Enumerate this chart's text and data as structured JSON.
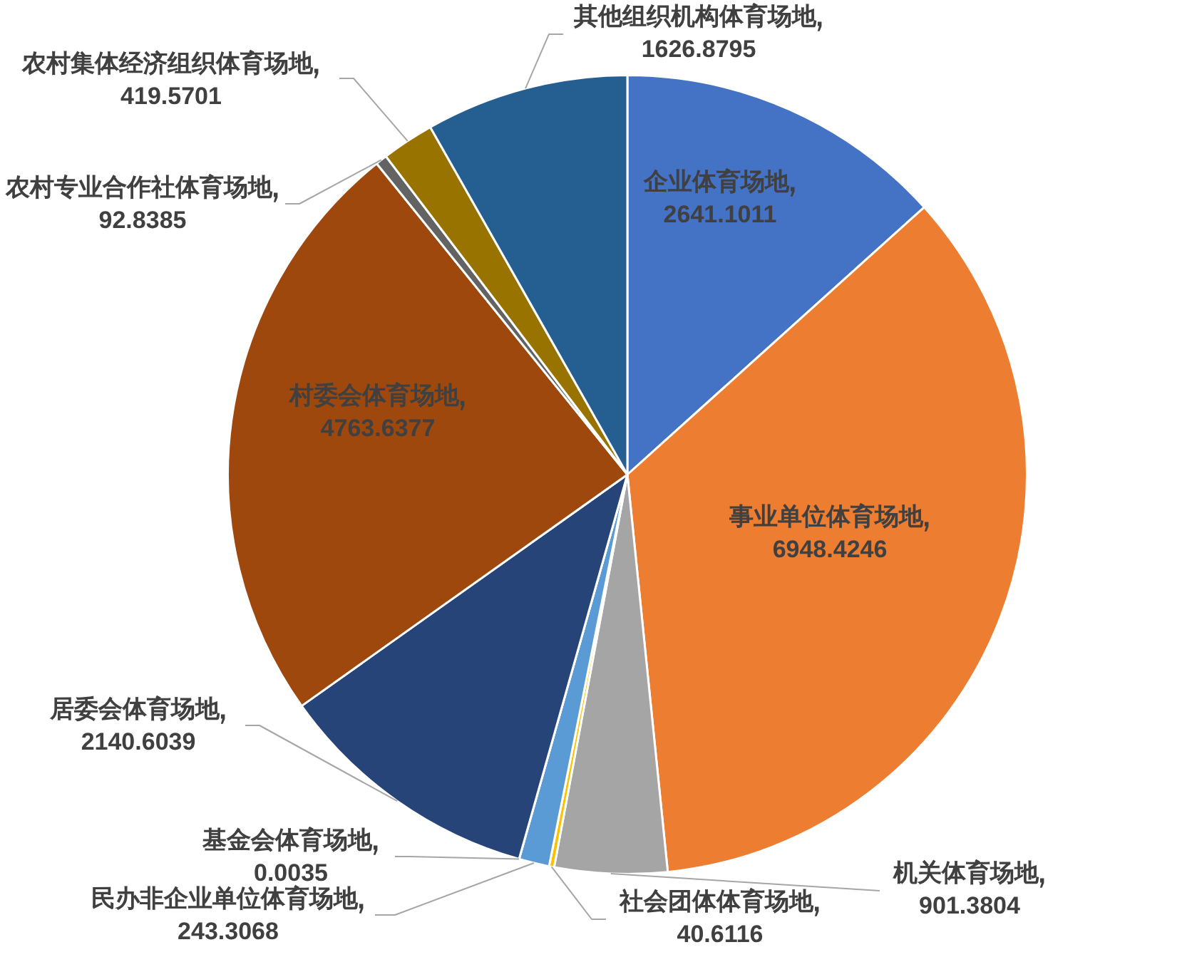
{
  "chart_data": {
    "type": "pie",
    "categories": [
      "企业体育场地",
      "事业单位体育场地",
      "机关体育场地",
      "社会团体体育场地",
      "民办非企业单位体育场地",
      "基金会体育场地",
      "居委会体育场地",
      "村委会体育场地",
      "农村专业合作社体育场地",
      "农村集体经济组织体育场地",
      "其他组织机构体育场地"
    ],
    "values": [
      2641.1011,
      6948.4246,
      901.3804,
      40.6116,
      243.3068,
      0.0035,
      2140.6039,
      4763.6377,
      92.8385,
      419.5701,
      1626.8795
    ],
    "colors": [
      "#4472c4",
      "#ed7d31",
      "#a5a5a5",
      "#ffc000",
      "#5b9bd5",
      "#70ad47",
      "#264478",
      "#9e480e",
      "#636363",
      "#997300",
      "#255e91"
    ],
    "data_labels": true,
    "legend": false
  }
}
